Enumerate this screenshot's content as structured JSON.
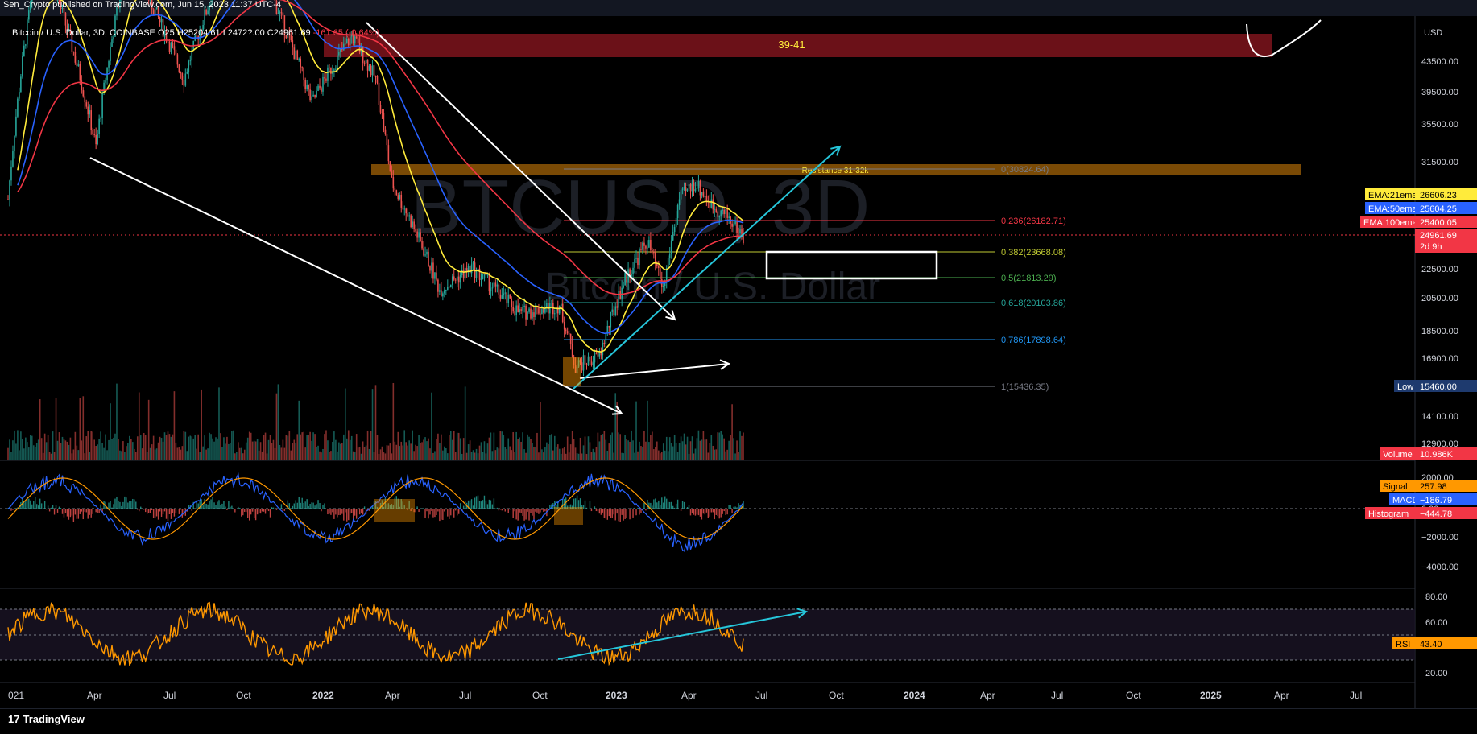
{
  "header": {
    "published": "Sen_Crypto published on TradingView.com, Jun 15, 2023 11:37 UTC-4",
    "symbol_line": "Bitcoin / U.S. Dollar, 3D, COINBASE",
    "ohlc_text": "O25",
    "ohlc_rest": "H25204.61 L2472?.00 C24961.69",
    "change": "-161.65 (-0.64%)"
  },
  "watermark": {
    "ticker": "BTCUSD, 3D",
    "name": "Bitcoin / U.S. Dollar"
  },
  "price_axis": {
    "currency": "USD",
    "ticks": [
      "43500.00",
      "39500.00",
      "35500.00",
      "31500.00",
      "22500.00",
      "20500.00",
      "18500.00",
      "16900.00",
      "14100.00",
      "12900.00"
    ],
    "tags": [
      {
        "label": "EMA:21ema",
        "value": "26606.23",
        "bg": "#ffeb3b",
        "fg": "#000000"
      },
      {
        "label": "EMA:50ema",
        "value": "25604.25",
        "bg": "#2962ff",
        "fg": "#ffffff"
      },
      {
        "label": "EMA:100ema",
        "value": "25400.05",
        "bg": "#f23645",
        "fg": "#ffffff"
      },
      {
        "label": "",
        "value": "24961.69",
        "sub": "2d 9h",
        "bg": "#f23645",
        "fg": "#ffffff"
      },
      {
        "label": "Low",
        "value": "15460.00",
        "bg": "#1e3a6e",
        "fg": "#ffffff"
      },
      {
        "label": "Volume",
        "value": "10.986K",
        "bg": "#f23645",
        "fg": "#ffffff"
      }
    ]
  },
  "macd_axis": {
    "ticks": [
      "2000.00",
      "0.00",
      "−2000.00",
      "−4000.00"
    ],
    "tags": [
      {
        "label": "Signal",
        "value": "257.98",
        "bg": "#ff9800",
        "fg": "#000000"
      },
      {
        "label": "MACD",
        "value": "−186.79",
        "bg": "#2962ff",
        "fg": "#ffffff"
      },
      {
        "label": "Histogram",
        "value": "−444.78",
        "bg": "#f23645",
        "fg": "#ffffff"
      }
    ]
  },
  "rsi_axis": {
    "ticks": [
      "80.00",
      "60.00",
      "20.00"
    ],
    "tag": {
      "label": "RSI",
      "value": "43.40",
      "bg": "#ff9800",
      "fg": "#000000"
    }
  },
  "time_axis": [
    "021",
    "Apr",
    "Jul",
    "Oct",
    "2022",
    "Apr",
    "Jul",
    "Oct",
    "2023",
    "Apr",
    "Jul",
    "Oct",
    "2024",
    "Apr",
    "Jul",
    "Oct",
    "2025",
    "Apr",
    "Jul"
  ],
  "annotations": {
    "zone_top": "39-41",
    "resistance": "Resistance 31-32k"
  },
  "chart_data": {
    "type": "line",
    "title": "Bitcoin / U.S. Dollar, 3D, COINBASE",
    "fib_levels": [
      {
        "ratio": "0",
        "value": "30824.64",
        "label": "0(30824.64)",
        "color": "#787b86"
      },
      {
        "ratio": "0.236",
        "value": "26182.71",
        "label": "0.236(26182.71)",
        "color": "#f23645"
      },
      {
        "ratio": "0.382",
        "value": "23668.08",
        "label": "0.382(23668.08)",
        "color": "#c0ca33"
      },
      {
        "ratio": "0.5",
        "value": "21813.29",
        "label": "0.5(21813.29)",
        "color": "#4caf50"
      },
      {
        "ratio": "0.618",
        "value": "20103.86",
        "label": "0.618(20103.86)",
        "color": "#26a69a"
      },
      {
        "ratio": "0.786",
        "value": "17898.64",
        "label": "0.786(17898.64)",
        "color": "#2196f3"
      },
      {
        "ratio": "1",
        "value": "15436.35",
        "label": "1(15436.35)",
        "color": "#787b86"
      }
    ],
    "series": [
      {
        "name": "EMA:21ema",
        "last": 26606.23,
        "color": "#ffeb3b"
      },
      {
        "name": "EMA:50ema",
        "last": 25604.25,
        "color": "#2962ff"
      },
      {
        "name": "EMA:100ema",
        "last": 25400.05,
        "color": "#f23645"
      },
      {
        "name": "Volume",
        "last": "10.986K"
      },
      {
        "name": "Signal",
        "last": 257.98,
        "color": "#ff9800"
      },
      {
        "name": "MACD",
        "last": -186.79,
        "color": "#2962ff"
      },
      {
        "name": "Histogram",
        "last": -444.78,
        "color": "#f23645"
      },
      {
        "name": "RSI",
        "last": 43.4,
        "color": "#ff9800"
      }
    ],
    "close": 24961.69,
    "low": 15460.0
  },
  "footer": {
    "brand": "TradingView"
  }
}
